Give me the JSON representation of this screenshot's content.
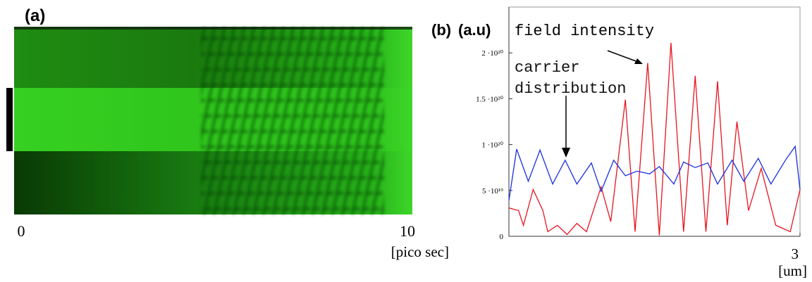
{
  "chart_data": [
    {
      "type": "image",
      "label": "(a)",
      "xlim": [
        0,
        10
      ],
      "xticks": [
        0,
        10
      ],
      "xlabel": "[pico sec]"
    },
    {
      "type": "line",
      "label": "(b)",
      "ylabel": "(a.u)",
      "xlabel": "[um]",
      "xlim": [
        0,
        3
      ],
      "xticks": [
        3
      ],
      "ylim": [
        0,
        2.5e+20
      ],
      "yticks": [
        0,
        {
          "value": 5e+19,
          "label": "5 ·10¹⁹"
        },
        {
          "value": 1e+20,
          "label": "1 ·10²⁰"
        },
        {
          "value": 1.5e+20,
          "label": "1.5 ·10²⁰"
        },
        {
          "value": 2e+20,
          "label": "2 ·10²⁰"
        }
      ],
      "annotations": [
        "field intensity",
        "carrier distribution"
      ],
      "series": [
        {
          "color": "#e8141e",
          "x": [
            0,
            0.1,
            0.15,
            0.25,
            0.35,
            0.4,
            0.5,
            0.6,
            0.7,
            0.8,
            0.95,
            1.05,
            1.2,
            1.3,
            1.43,
            1.55,
            1.67,
            1.8,
            1.92,
            2.03,
            2.15,
            2.25,
            2.35,
            2.47,
            2.6,
            2.75,
            2.9,
            3.0
          ],
          "values": [
            3.1e+19,
            2.8e+19,
            1.2e+19,
            5.1e+19,
            2.8e+19,
            5e+18,
            1.2e+19,
            2e+18,
            1.4e+19,
            5e+18,
            5.4e+19,
            1.6e+19,
            1.49e+20,
            5e+18,
            1.89e+20,
            1e+18,
            2.11e+20,
            5e+18,
            1.75e+20,
            5e+18,
            1.69e+20,
            1.2e+19,
            1.25e+20,
            2.8e+19,
            7.4e+19,
            1.2e+19,
            5e+18,
            5.1e+19
          ]
        },
        {
          "color": "#1a2ee0",
          "x": [
            0,
            0.08,
            0.2,
            0.32,
            0.45,
            0.58,
            0.7,
            0.85,
            0.95,
            1.08,
            1.2,
            1.32,
            1.45,
            1.55,
            1.7,
            1.8,
            1.92,
            2.05,
            2.15,
            2.3,
            2.42,
            2.57,
            2.7,
            2.85,
            2.95,
            3.0
          ],
          "values": [
            3.9e+19,
            9.5e+19,
            6e+19,
            9.4e+19,
            5.7e+19,
            8.3e+19,
            5.7e+19,
            8e+19,
            4.9e+19,
            8.3e+19,
            6.6e+19,
            7.1e+19,
            6.8e+19,
            7.6e+19,
            5.7e+19,
            8.1e+19,
            7.5e+19,
            8e+19,
            5.7e+19,
            8.3e+19,
            6e+19,
            8.5e+19,
            5.7e+19,
            8.3e+19,
            9.8e+19,
            5.1e+19
          ]
        }
      ]
    }
  ]
}
